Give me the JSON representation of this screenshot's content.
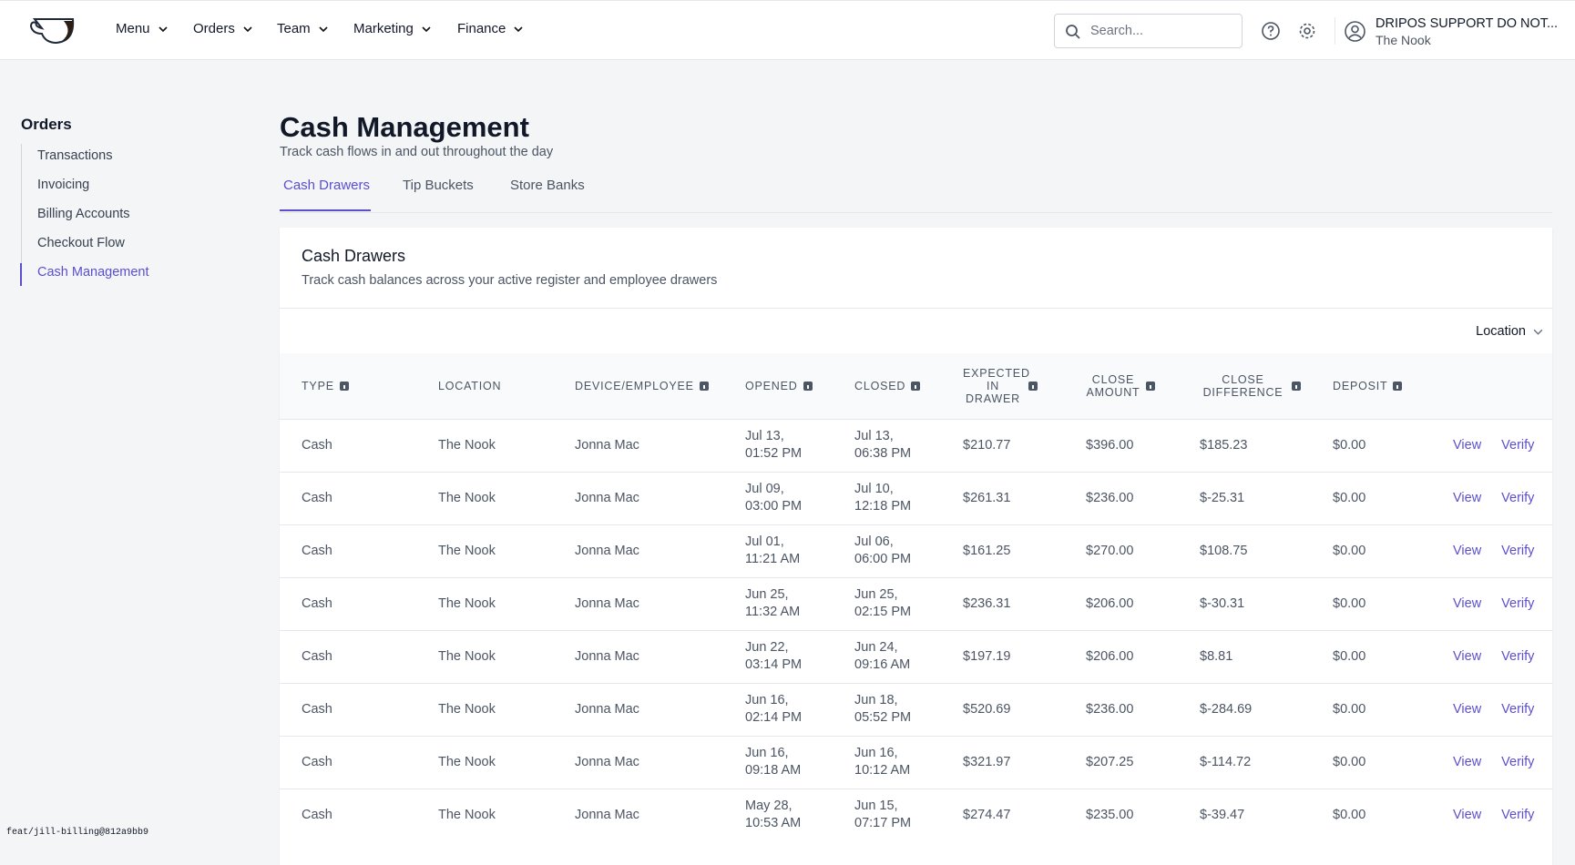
{
  "nav": {
    "items": [
      "Menu",
      "Orders",
      "Team",
      "Marketing",
      "Finance"
    ],
    "search_placeholder": "Search...",
    "user_name": "DRIPOS SUPPORT DO NOT...",
    "user_location": "The Nook"
  },
  "sidebar": {
    "title": "Orders",
    "items": [
      "Transactions",
      "Invoicing",
      "Billing Accounts",
      "Checkout Flow",
      "Cash Management"
    ]
  },
  "header": {
    "title": "Cash Management",
    "subtitle": "Track cash flows in and out throughout the day"
  },
  "tabs": [
    "Cash Drawers",
    "Tip Buckets",
    "Store Banks"
  ],
  "card": {
    "title": "Cash Drawers",
    "description": "Track cash balances across your active register and employee drawers",
    "filter": "Location"
  },
  "table": {
    "headers": [
      "TYPE",
      "LOCATION",
      "DEVICE/EMPLOYEE",
      "OPENED",
      "CLOSED",
      "EXPECTED IN DRAWER",
      "CLOSE AMOUNT",
      "CLOSE DIFFERENCE",
      "DEPOSIT"
    ],
    "rows": [
      [
        "Cash",
        "The Nook",
        "Jonna Mac",
        [
          "Jul 13,",
          "01:52 PM"
        ],
        [
          "Jul 13,",
          "06:38 PM"
        ],
        "$210.77",
        "$396.00",
        "$185.23",
        "$0.00",
        "View",
        "Verify"
      ],
      [
        "Cash",
        "The Nook",
        "Jonna Mac",
        [
          "Jul 09,",
          "03:00 PM"
        ],
        [
          "Jul 10,",
          "12:18 PM"
        ],
        "$261.31",
        "$236.00",
        "$-25.31",
        "$0.00",
        "View",
        "Verify"
      ],
      [
        "Cash",
        "The Nook",
        "Jonna Mac",
        [
          "Jul 01,",
          "11:21 AM"
        ],
        [
          "Jul 06,",
          "06:00 PM"
        ],
        "$161.25",
        "$270.00",
        "$108.75",
        "$0.00",
        "View",
        "Verify"
      ],
      [
        "Cash",
        "The Nook",
        "Jonna Mac",
        [
          "Jun 25,",
          "11:32 AM"
        ],
        [
          "Jun 25,",
          "02:15 PM"
        ],
        "$236.31",
        "$206.00",
        "$-30.31",
        "$0.00",
        "View",
        "Verify"
      ],
      [
        "Cash",
        "The Nook",
        "Jonna Mac",
        [
          "Jun 22,",
          "03:14 PM"
        ],
        [
          "Jun 24,",
          "09:16 AM"
        ],
        "$197.19",
        "$206.00",
        "$8.81",
        "$0.00",
        "View",
        "Verify"
      ],
      [
        "Cash",
        "The Nook",
        "Jonna Mac",
        [
          "Jun 16,",
          "02:14 PM"
        ],
        [
          "Jun 18,",
          "05:52 PM"
        ],
        "$520.69",
        "$236.00",
        "$-284.69",
        "$0.00",
        "View",
        "Verify"
      ],
      [
        "Cash",
        "The Nook",
        "Jonna Mac",
        [
          "Jun 16,",
          "09:18 AM"
        ],
        [
          "Jun 16,",
          "10:12 AM"
        ],
        "$321.97",
        "$207.25",
        "$-114.72",
        "$0.00",
        "View",
        "Verify"
      ],
      [
        "Cash",
        "The Nook",
        "Jonna Mac",
        [
          "May 28,",
          "10:53 AM"
        ],
        [
          "Jun 15,",
          "07:17 PM"
        ],
        "$274.47",
        "$235.00",
        "$-39.47",
        "$0.00",
        "View",
        "Verify"
      ]
    ]
  },
  "footer": {
    "version": "feat/jill-billing@812a9bb9"
  }
}
